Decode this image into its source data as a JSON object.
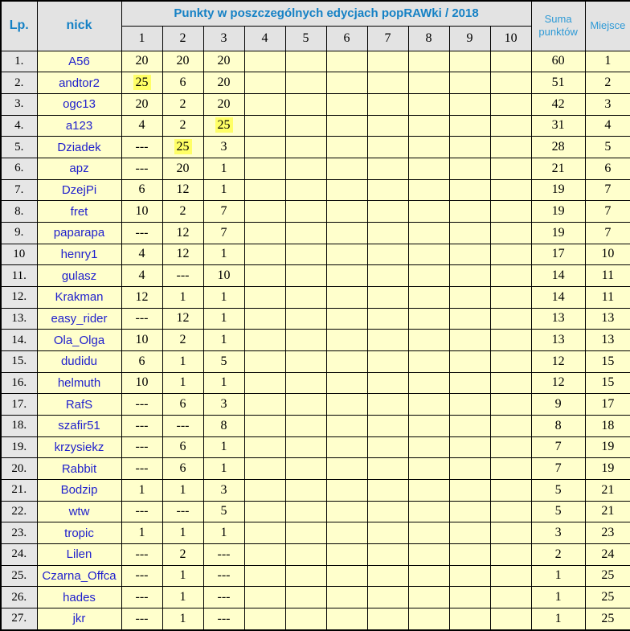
{
  "chart_data": {
    "type": "table",
    "title": "Punkty w poszczególnych edycjach popRAWki / 2018",
    "header": {
      "lp": "Lp.",
      "nick": "nick",
      "editions": [
        "1",
        "2",
        "3",
        "4",
        "5",
        "6",
        "7",
        "8",
        "9",
        "10"
      ],
      "suma": "Suma punktów",
      "miejsce": "Miejsce"
    },
    "empty_value": "---",
    "rows": [
      {
        "lp": "1.",
        "nick": "A56",
        "points": [
          "20",
          "20",
          "20",
          "",
          "",
          "",
          "",
          "",
          "",
          ""
        ],
        "highlights": [],
        "suma": "60",
        "miejsce": "1"
      },
      {
        "lp": "2.",
        "nick": "andtor2",
        "points": [
          "25",
          "6",
          "20",
          "",
          "",
          "",
          "",
          "",
          "",
          ""
        ],
        "highlights": [
          0
        ],
        "suma": "51",
        "miejsce": "2"
      },
      {
        "lp": "3.",
        "nick": "ogc13",
        "points": [
          "20",
          "2",
          "20",
          "",
          "",
          "",
          "",
          "",
          "",
          ""
        ],
        "highlights": [],
        "suma": "42",
        "miejsce": "3"
      },
      {
        "lp": "4.",
        "nick": "a123",
        "points": [
          "4",
          "2",
          "25",
          "",
          "",
          "",
          "",
          "",
          "",
          ""
        ],
        "highlights": [
          2
        ],
        "suma": "31",
        "miejsce": "4"
      },
      {
        "lp": "5.",
        "nick": "Dziadek",
        "points": [
          "---",
          "25",
          "3",
          "",
          "",
          "",
          "",
          "",
          "",
          ""
        ],
        "highlights": [
          1
        ],
        "suma": "28",
        "miejsce": "5"
      },
      {
        "lp": "6.",
        "nick": "apz",
        "points": [
          "---",
          "20",
          "1",
          "",
          "",
          "",
          "",
          "",
          "",
          ""
        ],
        "highlights": [],
        "suma": "21",
        "miejsce": "6"
      },
      {
        "lp": "7.",
        "nick": "DzejPi",
        "points": [
          "6",
          "12",
          "1",
          "",
          "",
          "",
          "",
          "",
          "",
          ""
        ],
        "highlights": [],
        "suma": "19",
        "miejsce": "7"
      },
      {
        "lp": "8.",
        "nick": "fret",
        "points": [
          "10",
          "2",
          "7",
          "",
          "",
          "",
          "",
          "",
          "",
          ""
        ],
        "highlights": [],
        "suma": "19",
        "miejsce": "7"
      },
      {
        "lp": "9.",
        "nick": "paparapa",
        "points": [
          "---",
          "12",
          "7",
          "",
          "",
          "",
          "",
          "",
          "",
          ""
        ],
        "highlights": [],
        "suma": "19",
        "miejsce": "7"
      },
      {
        "lp": "10",
        "nick": "henry1",
        "points": [
          "4",
          "12",
          "1",
          "",
          "",
          "",
          "",
          "",
          "",
          ""
        ],
        "highlights": [],
        "suma": "17",
        "miejsce": "10"
      },
      {
        "lp": "11.",
        "nick": "gulasz",
        "points": [
          "4",
          "---",
          "10",
          "",
          "",
          "",
          "",
          "",
          "",
          ""
        ],
        "highlights": [],
        "suma": "14",
        "miejsce": "11"
      },
      {
        "lp": "12.",
        "nick": "Krakman",
        "points": [
          "12",
          "1",
          "1",
          "",
          "",
          "",
          "",
          "",
          "",
          ""
        ],
        "highlights": [],
        "suma": "14",
        "miejsce": "11"
      },
      {
        "lp": "13.",
        "nick": "easy_rider",
        "points": [
          "---",
          "12",
          "1",
          "",
          "",
          "",
          "",
          "",
          "",
          ""
        ],
        "highlights": [],
        "suma": "13",
        "miejsce": "13"
      },
      {
        "lp": "14.",
        "nick": "Ola_Olga",
        "points": [
          "10",
          "2",
          "1",
          "",
          "",
          "",
          "",
          "",
          "",
          ""
        ],
        "highlights": [],
        "suma": "13",
        "miejsce": "13"
      },
      {
        "lp": "15.",
        "nick": "dudidu",
        "points": [
          "6",
          "1",
          "5",
          "",
          "",
          "",
          "",
          "",
          "",
          ""
        ],
        "highlights": [],
        "suma": "12",
        "miejsce": "15"
      },
      {
        "lp": "16.",
        "nick": "helmuth",
        "points": [
          "10",
          "1",
          "1",
          "",
          "",
          "",
          "",
          "",
          "",
          ""
        ],
        "highlights": [],
        "suma": "12",
        "miejsce": "15"
      },
      {
        "lp": "17.",
        "nick": "RafS",
        "points": [
          "---",
          "6",
          "3",
          "",
          "",
          "",
          "",
          "",
          "",
          ""
        ],
        "highlights": [],
        "suma": "9",
        "miejsce": "17"
      },
      {
        "lp": "18.",
        "nick": "szafir51",
        "points": [
          "---",
          "---",
          "8",
          "",
          "",
          "",
          "",
          "",
          "",
          ""
        ],
        "highlights": [],
        "suma": "8",
        "miejsce": "18"
      },
      {
        "lp": "19.",
        "nick": "krzysiekz",
        "points": [
          "---",
          "6",
          "1",
          "",
          "",
          "",
          "",
          "",
          "",
          ""
        ],
        "highlights": [],
        "suma": "7",
        "miejsce": "19"
      },
      {
        "lp": "20.",
        "nick": "Rabbit",
        "points": [
          "---",
          "6",
          "1",
          "",
          "",
          "",
          "",
          "",
          "",
          ""
        ],
        "highlights": [],
        "suma": "7",
        "miejsce": "19"
      },
      {
        "lp": "21.",
        "nick": "Bodzip",
        "points": [
          "1",
          "1",
          "3",
          "",
          "",
          "",
          "",
          "",
          "",
          ""
        ],
        "highlights": [],
        "suma": "5",
        "miejsce": "21"
      },
      {
        "lp": "22.",
        "nick": "wtw",
        "points": [
          "---",
          "---",
          "5",
          "",
          "",
          "",
          "",
          "",
          "",
          ""
        ],
        "highlights": [],
        "suma": "5",
        "miejsce": "21"
      },
      {
        "lp": "23.",
        "nick": "tropic",
        "points": [
          "1",
          "1",
          "1",
          "",
          "",
          "",
          "",
          "",
          "",
          ""
        ],
        "highlights": [],
        "suma": "3",
        "miejsce": "23"
      },
      {
        "lp": "24.",
        "nick": "Lilen",
        "points": [
          "---",
          "2",
          "---",
          "",
          "",
          "",
          "",
          "",
          "",
          ""
        ],
        "highlights": [],
        "suma": "2",
        "miejsce": "24"
      },
      {
        "lp": "25.",
        "nick": "Czarna_Offca",
        "points": [
          "---",
          "1",
          "---",
          "",
          "",
          "",
          "",
          "",
          "",
          ""
        ],
        "highlights": [],
        "suma": "1",
        "miejsce": "25"
      },
      {
        "lp": "26.",
        "nick": "hades",
        "points": [
          "---",
          "1",
          "---",
          "",
          "",
          "",
          "",
          "",
          "",
          ""
        ],
        "highlights": [],
        "suma": "1",
        "miejsce": "25"
      },
      {
        "lp": "27.",
        "nick": "jkr",
        "points": [
          "---",
          "1",
          "---",
          "",
          "",
          "",
          "",
          "",
          "",
          ""
        ],
        "highlights": [],
        "suma": "1",
        "miejsce": "25"
      }
    ]
  },
  "colors": {
    "header_bg": "#e3e3e3",
    "lp_column_bg": "#e6e6e6",
    "body_bg": "#ffffcc",
    "highlight_bg": "#ffff66",
    "header_title_text": "#1581c5",
    "subheader_text": "#2e9ad6",
    "nick_text": "#1f1fcd",
    "number_text": "#000000",
    "border": "#000000"
  }
}
